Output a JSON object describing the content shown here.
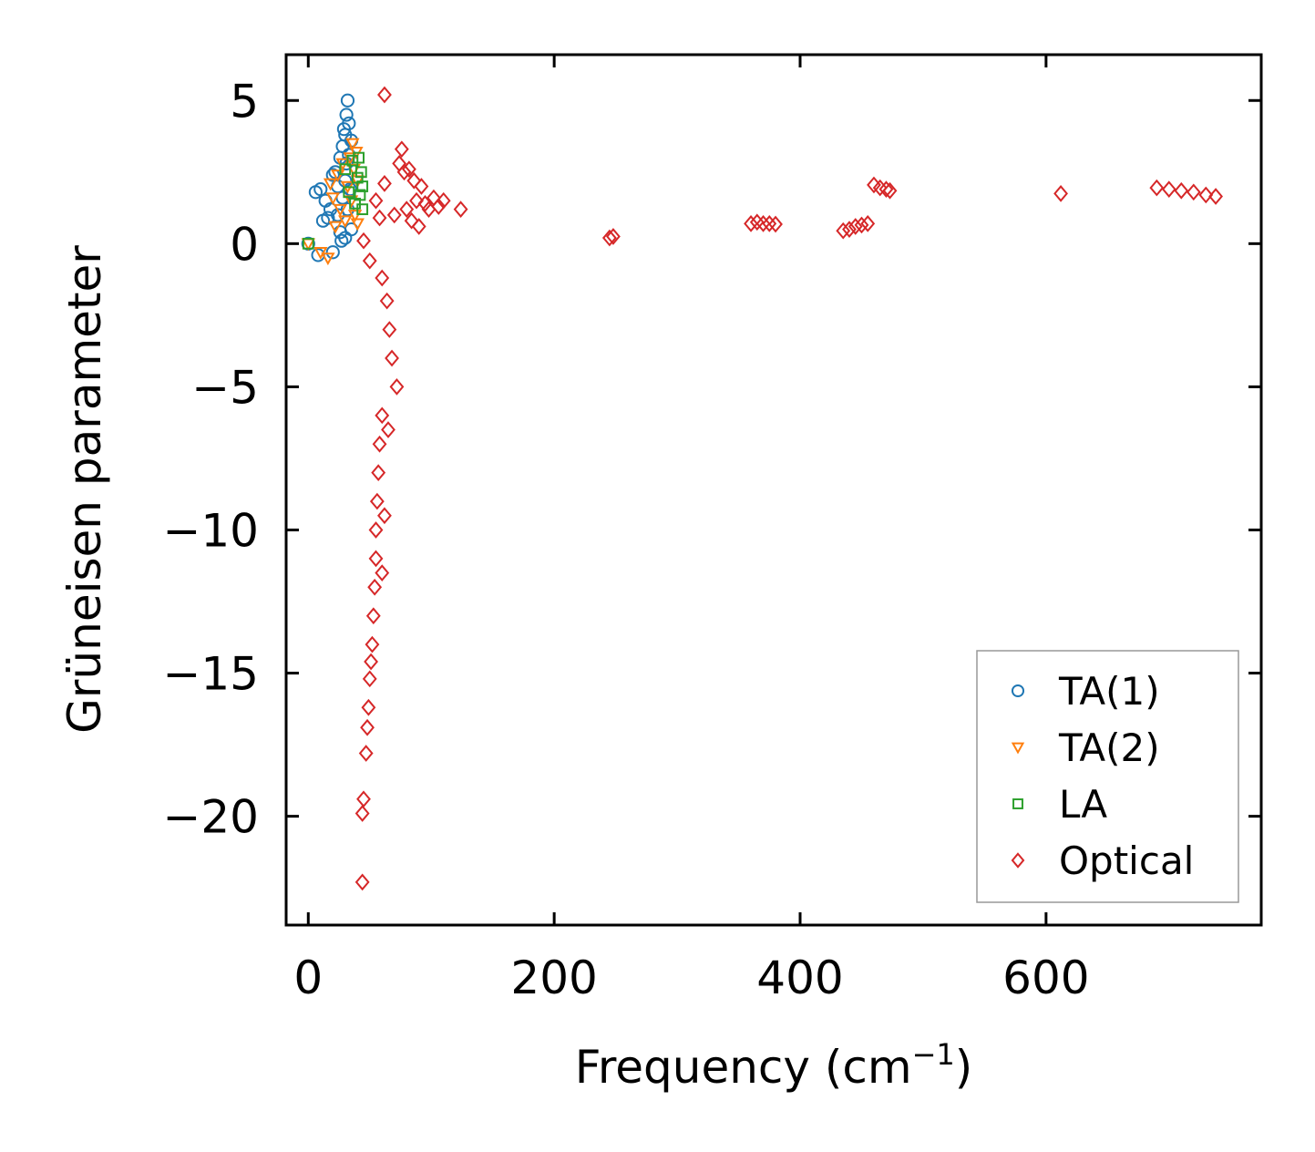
{
  "chart_data": {
    "type": "scatter",
    "xlabel": "Frequency (cm",
    "xlabel_sup": "−1",
    "xlabel_close": ")",
    "ylabel": "Grüneisen parameter",
    "xlim": [
      -18,
      775
    ],
    "ylim": [
      -23.8,
      6.6
    ],
    "xticks": [
      0,
      200,
      400,
      600
    ],
    "xtick_labels": [
      "0",
      "200",
      "400",
      "600"
    ],
    "yticks": [
      5,
      0,
      -5,
      -10,
      -15,
      -20
    ],
    "ytick_labels": [
      "5",
      "0",
      "−5",
      "−10",
      "−15",
      "−20"
    ],
    "legend_position": "lower-right",
    "series": [
      {
        "name": "TA(1)",
        "marker": "circle",
        "color": "#1f77b4",
        "points": [
          [
            0,
            0
          ],
          [
            6,
            1.8
          ],
          [
            8,
            -0.4
          ],
          [
            10,
            1.9
          ],
          [
            12,
            0.8
          ],
          [
            14,
            1.5
          ],
          [
            16,
            0.9
          ],
          [
            18,
            1.2
          ],
          [
            20,
            2.4
          ],
          [
            20,
            -0.3
          ],
          [
            22,
            2.5
          ],
          [
            24,
            1.0
          ],
          [
            24,
            2.0
          ],
          [
            26,
            0.4
          ],
          [
            26,
            3.0
          ],
          [
            27,
            0.1
          ],
          [
            28,
            3.4
          ],
          [
            28,
            1.6
          ],
          [
            29,
            4.0
          ],
          [
            30,
            3.8
          ],
          [
            30,
            0.2
          ],
          [
            30,
            2.2
          ],
          [
            31,
            4.5
          ],
          [
            31,
            2.8
          ],
          [
            32,
            5.0
          ],
          [
            32,
            1.2
          ],
          [
            33,
            4.2
          ],
          [
            33,
            3.1
          ],
          [
            34,
            1.9
          ],
          [
            35,
            3.6
          ],
          [
            35,
            0.5
          ]
        ]
      },
      {
        "name": "TA(2)",
        "marker": "triangle",
        "color": "#ff7f0e",
        "points": [
          [
            0,
            0
          ],
          [
            10,
            -0.3
          ],
          [
            16,
            -0.5
          ],
          [
            18,
            2.1
          ],
          [
            20,
            1.6
          ],
          [
            22,
            0.6
          ],
          [
            24,
            2.4
          ],
          [
            26,
            1.2
          ],
          [
            28,
            2.8
          ],
          [
            30,
            0.8
          ],
          [
            32,
            2.0
          ],
          [
            34,
            3.0
          ],
          [
            35,
            1.5
          ],
          [
            36,
            3.5
          ],
          [
            37,
            2.6
          ],
          [
            38,
            1.0
          ],
          [
            39,
            3.2
          ],
          [
            40,
            2.2
          ],
          [
            40,
            0.7
          ]
        ]
      },
      {
        "name": "LA",
        "marker": "square",
        "color": "#2ca02c",
        "points": [
          [
            0,
            0
          ],
          [
            30,
            2.6
          ],
          [
            33,
            1.8
          ],
          [
            36,
            2.9
          ],
          [
            38,
            1.4
          ],
          [
            40,
            2.3
          ],
          [
            41,
            3.0
          ],
          [
            42,
            1.7
          ],
          [
            43,
            2.5
          ],
          [
            44,
            2.0
          ],
          [
            44,
            1.2
          ]
        ]
      },
      {
        "name": "Optical",
        "marker": "diamond",
        "color": "#d62728",
        "points": [
          [
            62,
            5.2
          ],
          [
            45,
            0.1
          ],
          [
            50,
            -0.6
          ],
          [
            55,
            1.5
          ],
          [
            58,
            0.9
          ],
          [
            60,
            -1.2
          ],
          [
            62,
            2.1
          ],
          [
            64,
            -2.0
          ],
          [
            66,
            -3.0
          ],
          [
            68,
            -4.0
          ],
          [
            70,
            1.0
          ],
          [
            72,
            -5.0
          ],
          [
            74,
            2.8
          ],
          [
            76,
            3.3
          ],
          [
            78,
            2.5
          ],
          [
            80,
            1.2
          ],
          [
            82,
            2.6
          ],
          [
            84,
            0.8
          ],
          [
            86,
            2.2
          ],
          [
            88,
            1.5
          ],
          [
            90,
            0.6
          ],
          [
            92,
            2.0
          ],
          [
            95,
            1.4
          ],
          [
            98,
            1.2
          ],
          [
            102,
            1.6
          ],
          [
            106,
            1.3
          ],
          [
            110,
            1.5
          ],
          [
            124,
            1.2
          ],
          [
            60,
            -6.0
          ],
          [
            58,
            -7.0
          ],
          [
            57,
            -8.0
          ],
          [
            56,
            -9.0
          ],
          [
            55,
            -10.0
          ],
          [
            55,
            -11.0
          ],
          [
            54,
            -12.0
          ],
          [
            53,
            -13.0
          ],
          [
            52,
            -14.0
          ],
          [
            51,
            -14.6
          ],
          [
            50,
            -15.2
          ],
          [
            49,
            -16.2
          ],
          [
            48,
            -16.9
          ],
          [
            47,
            -17.8
          ],
          [
            45,
            -19.4
          ],
          [
            44,
            -19.9
          ],
          [
            44,
            -22.3
          ],
          [
            65,
            -6.5
          ],
          [
            62,
            -9.5
          ],
          [
            60,
            -11.5
          ],
          [
            245,
            0.2
          ],
          [
            248,
            0.25
          ],
          [
            360,
            0.7
          ],
          [
            365,
            0.75
          ],
          [
            370,
            0.7
          ],
          [
            375,
            0.7
          ],
          [
            380,
            0.68
          ],
          [
            435,
            0.45
          ],
          [
            440,
            0.5
          ],
          [
            445,
            0.6
          ],
          [
            450,
            0.65
          ],
          [
            455,
            0.7
          ],
          [
            460,
            2.05
          ],
          [
            465,
            1.95
          ],
          [
            470,
            1.9
          ],
          [
            473,
            1.85
          ],
          [
            612,
            1.75
          ],
          [
            690,
            1.95
          ],
          [
            700,
            1.9
          ],
          [
            710,
            1.85
          ],
          [
            720,
            1.8
          ],
          [
            730,
            1.7
          ],
          [
            738,
            1.65
          ]
        ]
      }
    ]
  }
}
